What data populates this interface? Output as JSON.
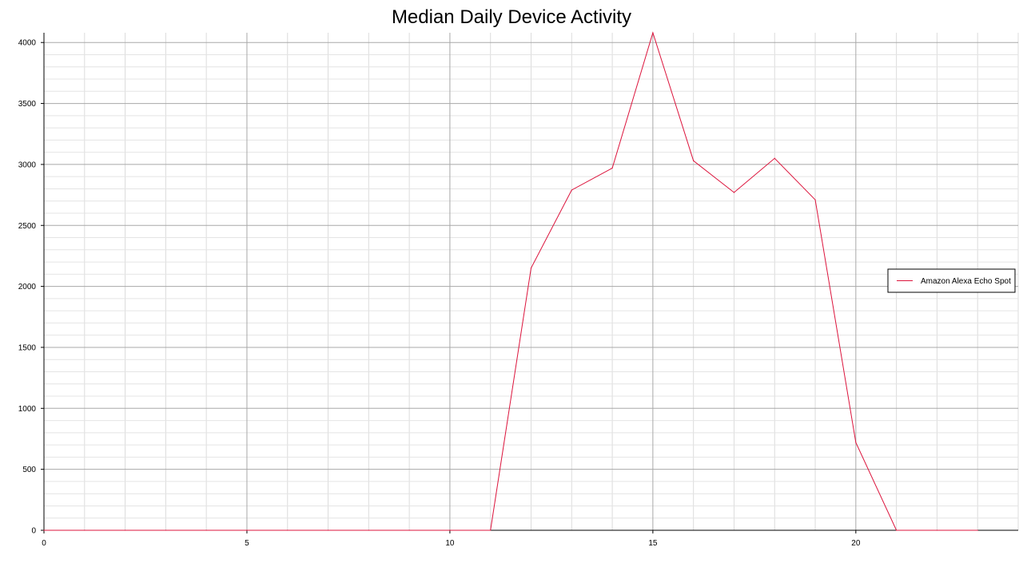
{
  "chart_data": {
    "type": "line",
    "title": "Median Daily Device Activity",
    "xlabel": "",
    "ylabel": "",
    "xlim": [
      0,
      24
    ],
    "ylim": [
      0,
      4080
    ],
    "x_ticks": [
      0,
      5,
      10,
      15,
      20
    ],
    "y_ticks": [
      0,
      500,
      1000,
      1500,
      2000,
      2500,
      3000,
      3500,
      4000
    ],
    "grid": true,
    "legend_position": "right",
    "series": [
      {
        "name": "Amazon Alexa Echo Spot",
        "color": "#dc143c",
        "x": [
          0,
          1,
          2,
          3,
          4,
          5,
          6,
          7,
          8,
          9,
          10,
          11,
          12,
          13,
          14,
          15,
          16,
          17,
          18,
          19,
          20,
          21,
          22,
          23
        ],
        "values": [
          0,
          0,
          0,
          0,
          0,
          0,
          0,
          0,
          0,
          0,
          0,
          0,
          2150,
          2790,
          2970,
          4080,
          3030,
          2770,
          3050,
          2710,
          720,
          0,
          0,
          0
        ]
      }
    ]
  }
}
